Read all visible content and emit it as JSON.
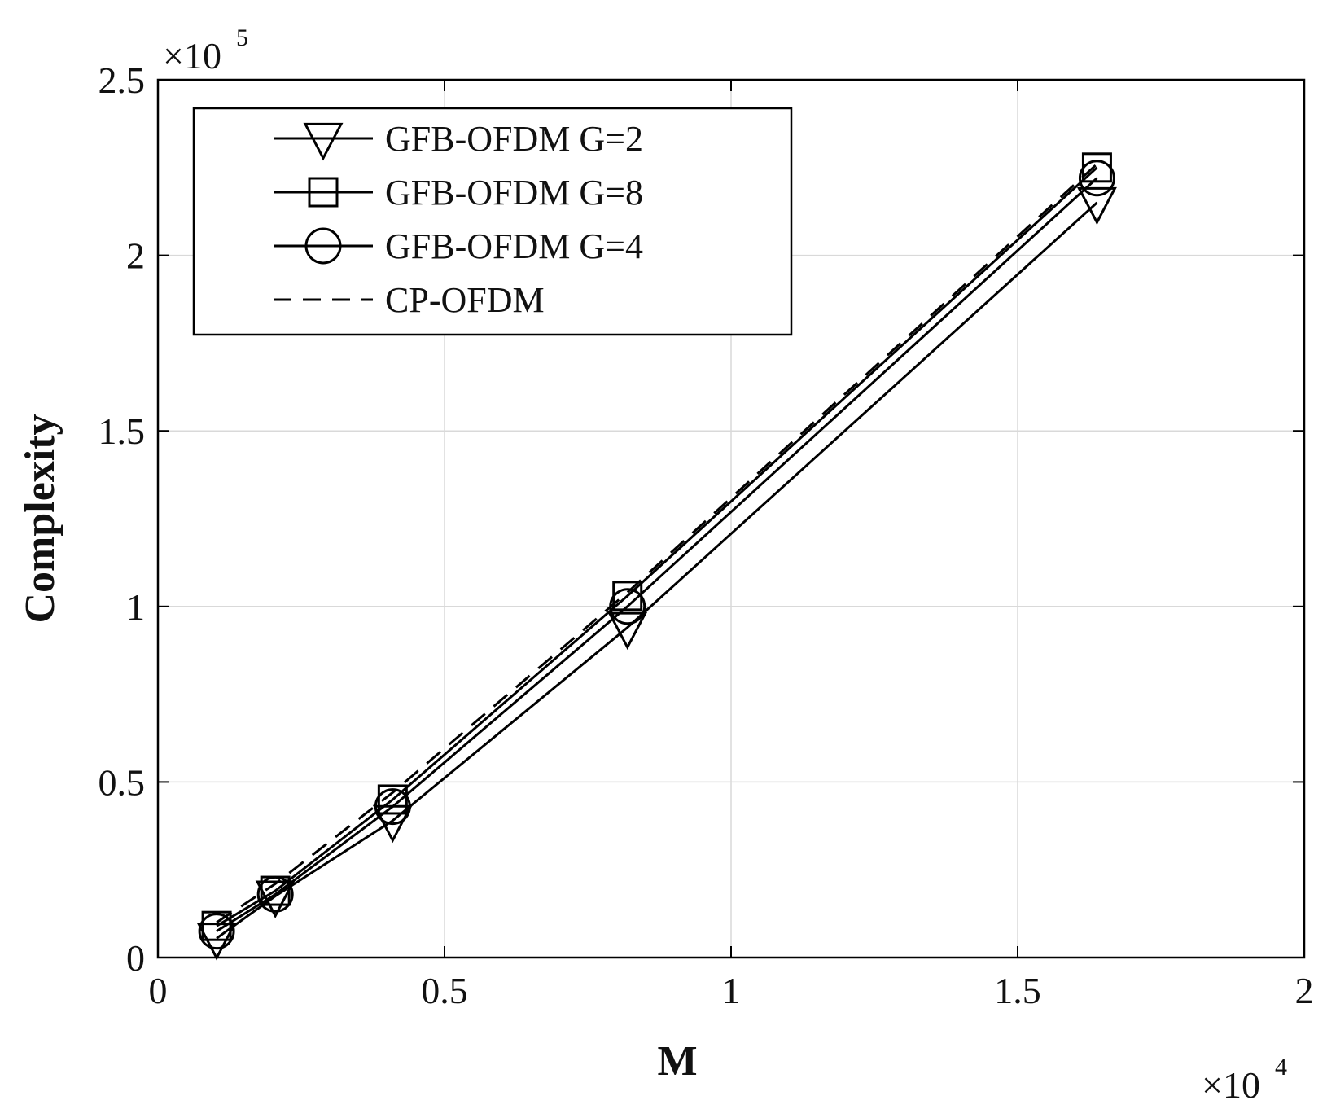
{
  "chart_data": {
    "type": "line",
    "xlabel": "M",
    "ylabel": "Complexity",
    "x_multiplier": {
      "base": "×10",
      "exponent": "4"
    },
    "y_multiplier": {
      "base": "×10",
      "exponent": "5"
    },
    "xlim": [
      0,
      20000
    ],
    "ylim": [
      0,
      250000
    ],
    "xticks": [
      0,
      5000,
      10000,
      15000,
      20000
    ],
    "xtick_labels": [
      "0",
      "0.5",
      "1",
      "1.5",
      "2"
    ],
    "yticks": [
      0,
      50000,
      100000,
      150000,
      200000,
      250000
    ],
    "ytick_labels": [
      "0",
      "0.5",
      "1",
      "1.5",
      "2",
      "2.5"
    ],
    "grid": true,
    "legend_position": "top-left",
    "x": [
      1024,
      2048,
      4096,
      8192,
      16384
    ],
    "series": [
      {
        "name": "GFB-OFDM G=2",
        "marker": "triangle-down",
        "dash": "solid",
        "values": [
          5500,
          17500,
          39000,
          94000,
          215000
        ]
      },
      {
        "name": "GFB-OFDM G=8",
        "marker": "square",
        "dash": "solid",
        "values": [
          9000,
          19000,
          45000,
          103000,
          225000
        ]
      },
      {
        "name": "GFB-OFDM G=4",
        "marker": "circle",
        "dash": "solid",
        "values": [
          7500,
          18000,
          43000,
          100000,
          222000
        ]
      },
      {
        "name": "CP-OFDM",
        "marker": "none",
        "dash": "dashed",
        "values": [
          10000,
          21000,
          47000,
          104000,
          226000
        ]
      }
    ]
  }
}
